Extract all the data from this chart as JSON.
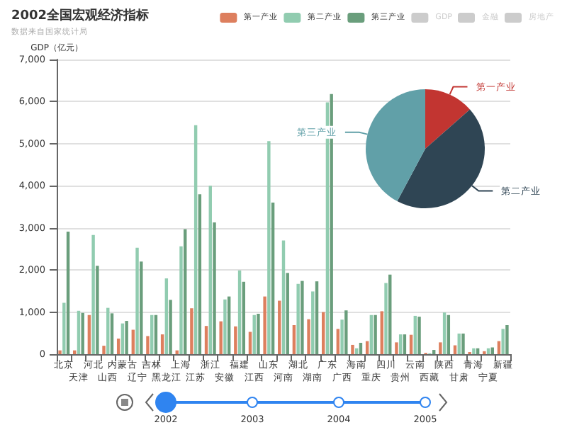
{
  "chart_data": [
    {
      "type": "bar",
      "title": "2002全国宏观经济指标",
      "subtitle": "数据来自国家统计局",
      "ylabel": "GDP（亿元）",
      "categories": [
        "北京",
        "天津",
        "河北",
        "山西",
        "内蒙古",
        "辽宁",
        "吉林",
        "黑龙江",
        "上海",
        "江苏",
        "浙江",
        "安徽",
        "福建",
        "江西",
        "山东",
        "河南",
        "湖北",
        "湖南",
        "广东",
        "广西",
        "海南",
        "重庆",
        "四川",
        "贵州",
        "云南",
        "西藏",
        "陕西",
        "甘肃",
        "青海",
        "宁夏",
        "新疆"
      ],
      "series": [
        {
          "name": "第一产业",
          "color": "#dd7f5e",
          "values": [
            90,
            90,
            930,
            200,
            370,
            580,
            430,
            470,
            90,
            1090,
            670,
            780,
            660,
            530,
            1370,
            1270,
            690,
            830,
            1000,
            600,
            220,
            310,
            1020,
            280,
            460,
            30,
            280,
            210,
            50,
            70,
            310
          ]
        },
        {
          "name": "第二产业",
          "color": "#91ccb0",
          "values": [
            1220,
            1030,
            2830,
            1100,
            730,
            2530,
            930,
            1800,
            2560,
            5440,
            4000,
            1300,
            1990,
            930,
            5060,
            2700,
            1670,
            1490,
            5980,
            820,
            140,
            930,
            1690,
            470,
            910,
            20,
            990,
            490,
            140,
            140,
            600
          ]
        },
        {
          "name": "第三产业",
          "color": "#6a9e7c",
          "values": [
            2910,
            980,
            2100,
            970,
            790,
            2200,
            930,
            1290,
            2970,
            3800,
            3130,
            1370,
            1720,
            960,
            3600,
            1930,
            1740,
            1730,
            6180,
            1040,
            270,
            930,
            1890,
            470,
            890,
            100,
            930,
            490,
            140,
            160,
            690
          ]
        },
        {
          "name": "GDP",
          "color": "#cccccc",
          "values": [
            null,
            null,
            null,
            null,
            null,
            null,
            null,
            null,
            null,
            null,
            null,
            null,
            null,
            null,
            null,
            null,
            null,
            null,
            null,
            null,
            null,
            null,
            null,
            null,
            null,
            null,
            null,
            null,
            null,
            null,
            null
          ]
        },
        {
          "name": "金融",
          "color": "#cccccc",
          "values": [
            null,
            null,
            null,
            null,
            null,
            null,
            null,
            null,
            null,
            null,
            null,
            null,
            null,
            null,
            null,
            null,
            null,
            null,
            null,
            null,
            null,
            null,
            null,
            null,
            null,
            null,
            null,
            null,
            null,
            null,
            null
          ]
        },
        {
          "name": "房地产",
          "color": "#cccccc",
          "values": [
            null,
            null,
            null,
            null,
            null,
            null,
            null,
            null,
            null,
            null,
            null,
            null,
            null,
            null,
            null,
            null,
            null,
            null,
            null,
            null,
            null,
            null,
            null,
            null,
            null,
            null,
            null,
            null,
            null,
            null,
            null
          ]
        }
      ],
      "ylim": [
        0,
        7000
      ],
      "yticks": [
        0,
        {
          "value": 1000,
          "label": "1,000"
        },
        {
          "value": 2000,
          "label": "2,000"
        },
        {
          "value": 3000,
          "label": "3,000"
        },
        {
          "value": 4000,
          "label": "4,000"
        },
        {
          "value": 5000,
          "label": "5,000"
        },
        {
          "value": 6000,
          "label": "6,000"
        },
        {
          "value": 7000,
          "label": "7,000"
        }
      ],
      "grid": "y",
      "legend": "top right",
      "annotations": [
        "2002",
        "2003",
        "2004",
        "2005"
      ]
    },
    {
      "type": "pie",
      "categories": [
        "第一产业",
        "第二产业",
        "第三产业"
      ],
      "values": [
        13.5,
        44.3,
        42.2
      ],
      "colors": [
        "#c23531",
        "#2f4554",
        "#61a0a8"
      ]
    }
  ]
}
